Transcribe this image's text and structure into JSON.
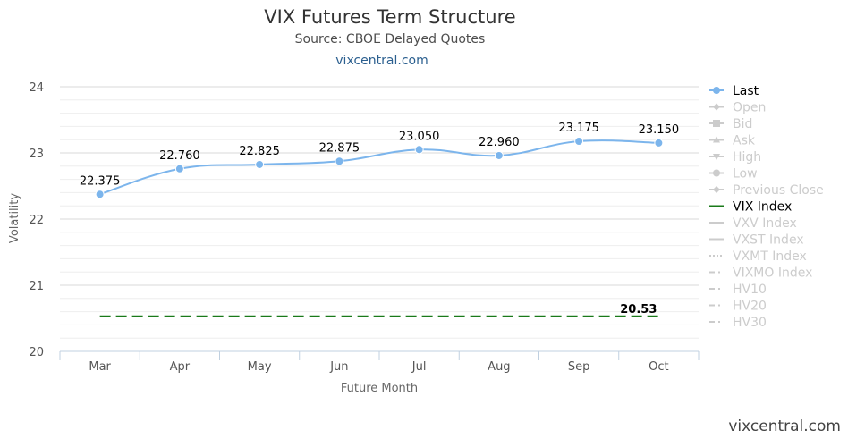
{
  "chart_data": {
    "type": "line",
    "title": "VIX Futures Term Structure",
    "subtitle": "Source: CBOE Delayed Quotes",
    "link_text": "vixcentral.com",
    "xlabel": "Future Month",
    "ylabel": "Volatility",
    "ylim": [
      20,
      24
    ],
    "yticks": [
      20,
      21,
      22,
      23,
      24
    ],
    "minor_grid_step": 0.2,
    "categories": [
      "Mar",
      "Apr",
      "May",
      "Jun",
      "Jul",
      "Aug",
      "Sep",
      "Oct"
    ],
    "series": [
      {
        "name": "Last",
        "color": "#7cb5ec",
        "values": [
          22.375,
          22.76,
          22.825,
          22.875,
          23.05,
          22.96,
          23.175,
          23.15
        ],
        "labels": [
          "22.375",
          "22.760",
          "22.825",
          "22.875",
          "23.050",
          "22.960",
          "23.175",
          "23.150"
        ]
      },
      {
        "name": "VIX Index",
        "color": "#1a7a1a",
        "value": 20.53,
        "label": "20.53"
      }
    ],
    "legend": {
      "position": "right",
      "items": [
        {
          "name": "Last",
          "active": true,
          "symbol": "circle-line"
        },
        {
          "name": "Open",
          "active": false,
          "symbol": "diamond-line"
        },
        {
          "name": "Bid",
          "active": false,
          "symbol": "square-line"
        },
        {
          "name": "Ask",
          "active": false,
          "symbol": "triangle-line"
        },
        {
          "name": "High",
          "active": false,
          "symbol": "triangle-down-line"
        },
        {
          "name": "Low",
          "active": false,
          "symbol": "circle-line"
        },
        {
          "name": "Previous Close",
          "active": false,
          "symbol": "diamond-line"
        },
        {
          "name": "VIX Index",
          "active": true,
          "symbol": "solid-line"
        },
        {
          "name": "VXV Index",
          "active": false,
          "symbol": "solid-line"
        },
        {
          "name": "VXST Index",
          "active": false,
          "symbol": "solid-line"
        },
        {
          "name": "VXMT Index",
          "active": false,
          "symbol": "dotted-line"
        },
        {
          "name": "VIXMO Index",
          "active": false,
          "symbol": "dash-dot-line"
        },
        {
          "name": "HV10",
          "active": false,
          "symbol": "dash-dot-line"
        },
        {
          "name": "HV20",
          "active": false,
          "symbol": "dash-dot-line"
        },
        {
          "name": "HV30",
          "active": false,
          "symbol": "dash-dot-line"
        }
      ]
    },
    "colors": {
      "legend_active_text": "#000000",
      "legend_inactive": "#cccccc",
      "grid_major": "#d8d8d8",
      "grid_minor": "#eeeeee",
      "axis": "#c0d0e0"
    }
  },
  "watermark": "vixcentral.com"
}
